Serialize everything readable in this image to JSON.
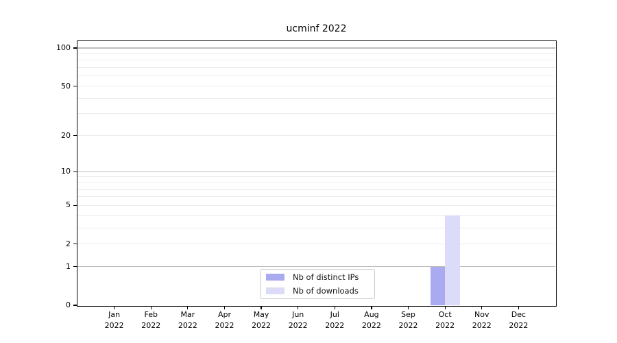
{
  "title": "ucminf 2022",
  "chart_data": {
    "type": "bar",
    "title": "ucminf 2022",
    "categories": [
      "Jan",
      "Feb",
      "Mar",
      "Apr",
      "May",
      "Jun",
      "Jul",
      "Aug",
      "Sep",
      "Oct",
      "Nov",
      "Dec"
    ],
    "year_label": "2022",
    "series": [
      {
        "name": "Nb of distinct IPs",
        "color": "#aaaaf0",
        "values": [
          0,
          0,
          0,
          0,
          0,
          0,
          0,
          0,
          0,
          1,
          0,
          0
        ]
      },
      {
        "name": "Nb of downloads",
        "color": "#dcdcf8",
        "values": [
          0,
          0,
          0,
          0,
          0,
          0,
          0,
          0,
          0,
          4,
          0,
          0
        ]
      }
    ],
    "yticks": [
      0,
      1,
      2,
      5,
      10,
      20,
      50,
      100
    ],
    "major_gridlines": [
      1,
      10,
      100
    ],
    "minor_gridlines": [
      2,
      3,
      4,
      5,
      6,
      7,
      8,
      9,
      20,
      30,
      40,
      50,
      60,
      70,
      80,
      90
    ],
    "scale": "log1p",
    "ylim": [
      0,
      100
    ],
    "xlabel": "",
    "ylabel": "",
    "grid": "on",
    "legend_position": "lower center"
  },
  "colors": {
    "grid_major": "#bdbdbd",
    "grid_minor": "#ececec",
    "spine": "#000000",
    "background": "#ffffff"
  }
}
